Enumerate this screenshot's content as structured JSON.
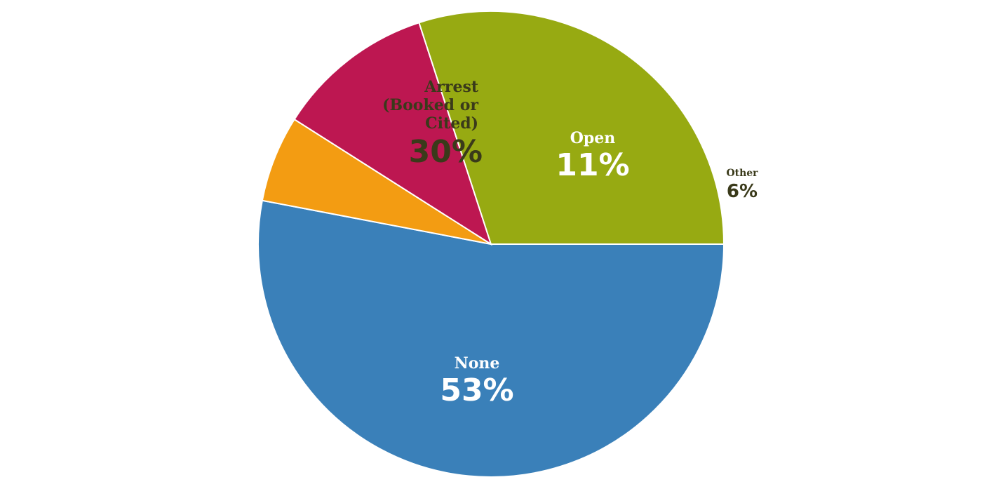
{
  "chart_data": {
    "type": "pie",
    "slices": [
      {
        "label": "None",
        "value": 53,
        "value_label": "53%",
        "color": "#3a80b9",
        "label_color": "#ffffff"
      },
      {
        "label": "Other",
        "value": 6,
        "value_label": "6%",
        "color": "#f39c12",
        "label_color": "#3a3a1a"
      },
      {
        "label": "Open",
        "value": 11,
        "value_label": "11%",
        "color": "#bd1751",
        "label_color": "#ffffff"
      },
      {
        "label": "Arrest\n(Booked or\nCited)",
        "value": 30,
        "value_label": "30%",
        "color": "#97aa12",
        "label_color": "#3a3a1a"
      }
    ]
  }
}
